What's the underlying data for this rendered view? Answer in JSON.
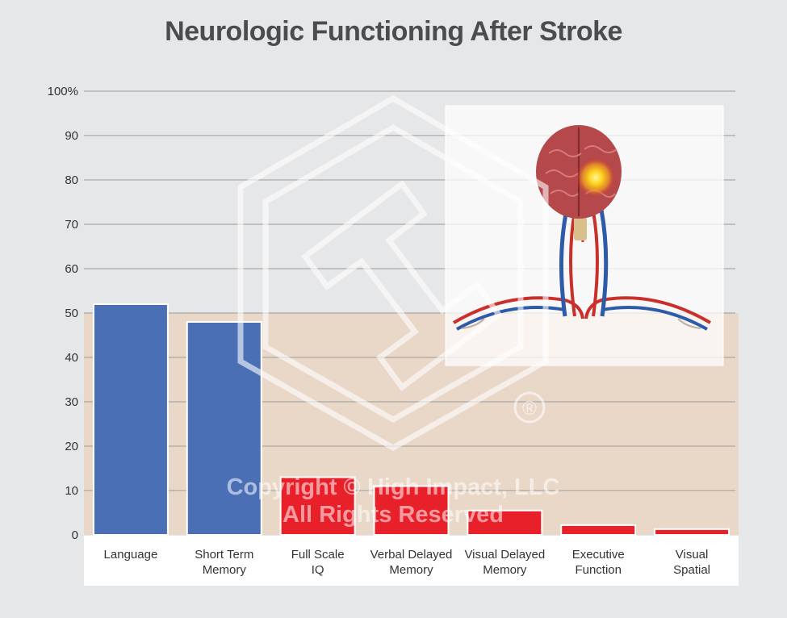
{
  "chart_data": {
    "type": "bar",
    "title": "Neurologic Functioning After Stroke",
    "categories": [
      [
        "Language"
      ],
      [
        "Short Term",
        "Memory"
      ],
      [
        "Full Scale",
        "IQ"
      ],
      [
        "Verbal Delayed",
        "Memory"
      ],
      [
        "Visual Delayed",
        "Memory"
      ],
      [
        "Executive",
        "Function"
      ],
      [
        "Visual",
        "Spatial"
      ]
    ],
    "values": [
      52,
      48,
      13,
      11,
      5.5,
      2.2,
      1.3
    ],
    "bar_colors": [
      "#4a6fb5",
      "#4a6fb5",
      "#e8202a",
      "#e8202a",
      "#e8202a",
      "#e8202a",
      "#e8202a"
    ],
    "ylim": [
      0,
      100
    ],
    "yticks": [
      0,
      10,
      20,
      30,
      40,
      50,
      60,
      70,
      80,
      90,
      100
    ],
    "ytick_labels": [
      "0",
      "10",
      "20",
      "30",
      "40",
      "50",
      "60",
      "70",
      "80",
      "90",
      "100%"
    ],
    "band": {
      "from": 0,
      "to": 50,
      "color": "#e9d8c8"
    },
    "grid": true
  },
  "watermark": {
    "line1": "Copyright © High Impact, LLC",
    "line2": "All Rights Reserved",
    "registered_mark": "®"
  },
  "illustration": {
    "icon": "brain-stroke-illustration",
    "highlight_color": "#ffd21a"
  }
}
